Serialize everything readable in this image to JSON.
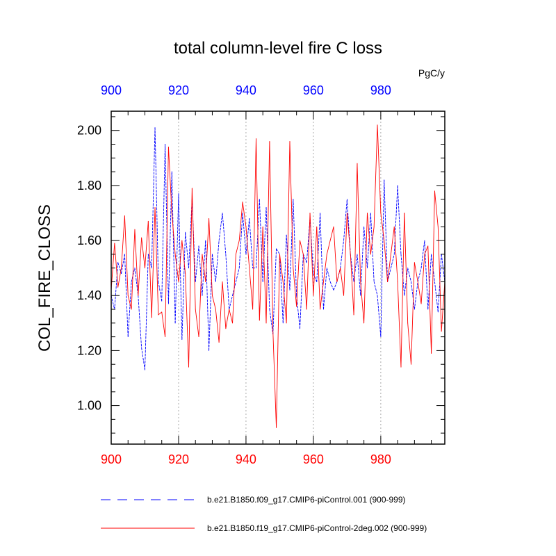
{
  "chart_data": {
    "type": "line",
    "title": "total column-level fire C loss",
    "units": "PgC/y",
    "ylabel": "COL_FIRE_CLOSS",
    "xlim": [
      900,
      999
    ],
    "ylim": [
      0.86,
      2.07
    ],
    "x_ticks": [
      "900",
      "920",
      "940",
      "960",
      "980"
    ],
    "y_ticks": [
      "1.00",
      "1.20",
      "1.40",
      "1.60",
      "1.80",
      "2.00"
    ],
    "grid": "vertical dotted at x ticks",
    "colors": {
      "bottom_axis": "#ff0000",
      "top_axis": "#0000ff"
    },
    "series": [
      {
        "name": "b.e21.B1850.f09_g17.CMIP6-piControl.001 (900-999)",
        "color": "#0000ff",
        "style": "dashed",
        "x_start": 900,
        "values": [
          1.4,
          1.35,
          1.52,
          1.48,
          1.55,
          1.25,
          1.45,
          1.5,
          1.4,
          1.21,
          1.13,
          1.55,
          1.5,
          2.01,
          1.45,
          1.38,
          1.95,
          1.37,
          1.85,
          1.3,
          1.77,
          1.24,
          1.63,
          1.5,
          1.75,
          1.45,
          1.58,
          1.4,
          1.6,
          1.2,
          1.55,
          1.45,
          1.6,
          1.7,
          1.55,
          1.35,
          1.4,
          1.45,
          1.5,
          1.7,
          1.55,
          1.68,
          1.5,
          1.5,
          1.75,
          1.45,
          1.72,
          1.35,
          1.26,
          1.57,
          1.55,
          1.3,
          1.62,
          1.42,
          1.75,
          1.4,
          1.28,
          1.55,
          1.52,
          1.68,
          1.48,
          1.45,
          1.7,
          1.35,
          1.5,
          1.45,
          1.42,
          1.45,
          1.5,
          1.6,
          1.75,
          1.55,
          1.45,
          1.55,
          1.4,
          1.65,
          1.5,
          1.7,
          1.45,
          1.4,
          1.25,
          1.82,
          1.45,
          1.5,
          1.55,
          1.8,
          1.55,
          1.4,
          1.5,
          1.45,
          1.35,
          1.45,
          1.5,
          1.6,
          1.35,
          1.55,
          1.45,
          1.34,
          1.55,
          1.45
        ]
      },
      {
        "name": "b.e21.B1850.f19_g17.CMIP6-piControl-2deg.002 (900-999)",
        "color": "#ff0000",
        "style": "solid",
        "x_start": 900,
        "values": [
          1.42,
          1.59,
          1.43,
          1.5,
          1.69,
          1.4,
          1.35,
          1.64,
          1.4,
          1.61,
          1.5,
          1.67,
          1.32,
          1.72,
          1.33,
          1.34,
          1.25,
          1.94,
          1.7,
          1.55,
          1.45,
          1.6,
          1.48,
          1.14,
          1.79,
          1.35,
          1.25,
          1.55,
          1.45,
          1.68,
          1.4,
          1.35,
          1.23,
          1.45,
          1.28,
          1.35,
          1.3,
          1.55,
          1.6,
          1.74,
          1.65,
          1.5,
          1.35,
          1.97,
          1.31,
          1.65,
          1.3,
          1.96,
          1.27,
          0.92,
          1.55,
          1.45,
          1.3,
          1.96,
          1.5,
          1.36,
          1.6,
          1.55,
          1.35,
          1.7,
          1.4,
          1.65,
          1.35,
          1.45,
          1.55,
          1.6,
          1.65,
          1.45,
          1.5,
          1.4,
          1.7,
          1.55,
          1.33,
          1.88,
          1.45,
          1.3,
          1.7,
          1.55,
          1.65,
          2.02,
          1.7,
          1.6,
          1.45,
          1.55,
          1.65,
          1.45,
          1.14,
          1.7,
          1.3,
          1.15,
          1.52,
          1.45,
          1.37,
          1.55,
          1.58,
          1.19,
          1.78,
          1.65,
          1.27,
          1.45
        ]
      }
    ]
  }
}
